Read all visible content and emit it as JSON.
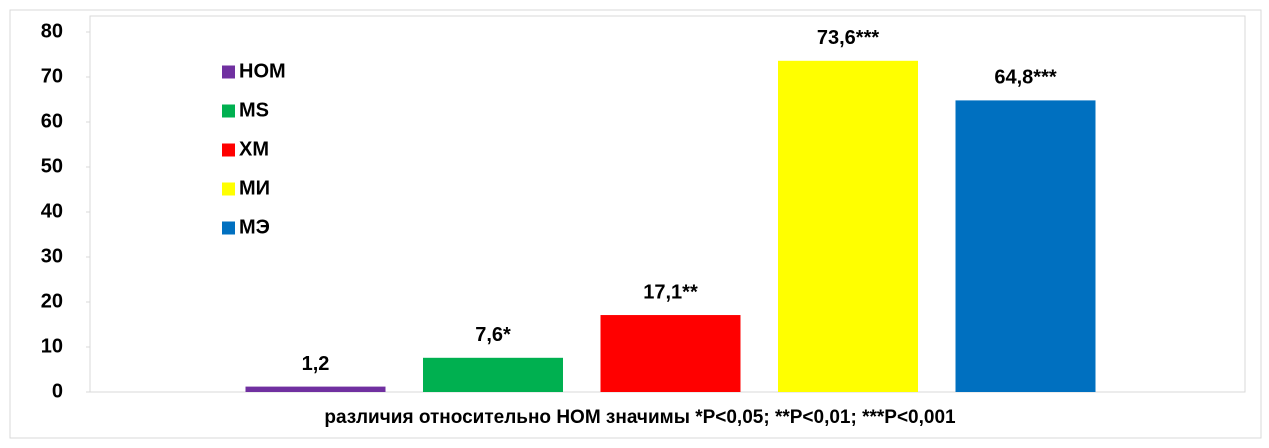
{
  "chart_data": {
    "type": "bar",
    "categories": [
      null
    ],
    "series": [
      {
        "name": "НОМ",
        "color": "#7030a0",
        "values": [
          1.2
        ],
        "value_labels": [
          "1,2"
        ]
      },
      {
        "name": "MS",
        "color": "#00b050",
        "values": [
          7.6
        ],
        "value_labels": [
          "7,6*"
        ]
      },
      {
        "name": "ХМ",
        "color": "#ff0000",
        "values": [
          17.1
        ],
        "value_labels": [
          "17,1**"
        ]
      },
      {
        "name": "МИ",
        "color": "#ffff00",
        "values": [
          73.6
        ],
        "value_labels": [
          "73,6***"
        ]
      },
      {
        "name": "МЭ",
        "color": "#0070c0",
        "values": [
          64.8
        ],
        "value_labels": [
          "64,8***"
        ]
      }
    ],
    "x_label": "различия относительно НОМ значимы *P<0,05; **P<0,01; ***P<0,001",
    "ylim": [
      0,
      80
    ],
    "yticks": [
      0,
      10,
      20,
      30,
      40,
      50,
      60,
      70,
      80
    ],
    "grid": false,
    "legend": "upper left"
  }
}
